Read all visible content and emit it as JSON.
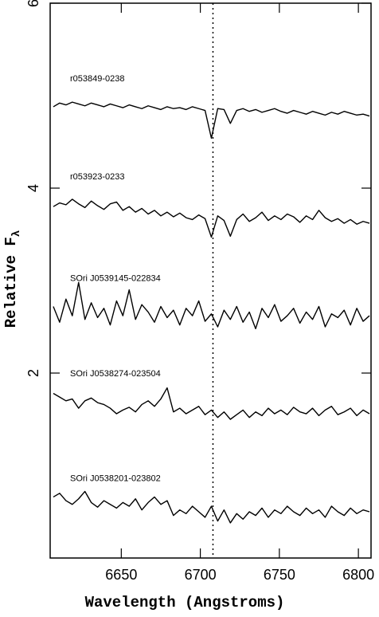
{
  "chart_data": {
    "type": "line",
    "x_label": "Wavelength (Angstroms)",
    "y_label": "Relative F",
    "y_label_subscript": "λ",
    "x": [
      6607,
      6611,
      6615,
      6619,
      6623,
      6627,
      6631,
      6635,
      6639,
      6643,
      6647,
      6651,
      6655,
      6659,
      6663,
      6667,
      6671,
      6675,
      6679,
      6683,
      6687,
      6691,
      6695,
      6699,
      6703,
      6707,
      6711,
      6715,
      6719,
      6723,
      6727,
      6731,
      6735,
      6739,
      6743,
      6747,
      6751,
      6755,
      6759,
      6763,
      6767,
      6771,
      6775,
      6779,
      6783,
      6787,
      6791,
      6795,
      6799,
      6803,
      6807
    ],
    "series": [
      {
        "name": "r053849-0238",
        "color": "#000000",
        "values": [
          4.88,
          4.92,
          4.9,
          4.93,
          4.91,
          4.89,
          4.92,
          4.9,
          4.88,
          4.91,
          4.89,
          4.87,
          4.9,
          4.88,
          4.86,
          4.89,
          4.87,
          4.85,
          4.88,
          4.86,
          4.87,
          4.85,
          4.88,
          4.86,
          4.84,
          4.54,
          4.86,
          4.85,
          4.7,
          4.84,
          4.86,
          4.83,
          4.85,
          4.82,
          4.84,
          4.86,
          4.83,
          4.81,
          4.84,
          4.82,
          4.8,
          4.83,
          4.81,
          4.79,
          4.82,
          4.8,
          4.83,
          4.81,
          4.79,
          4.8,
          4.78
        ]
      },
      {
        "name": "r053923-0233",
        "color": "#000000",
        "values": [
          3.8,
          3.84,
          3.82,
          3.88,
          3.83,
          3.79,
          3.86,
          3.81,
          3.77,
          3.83,
          3.85,
          3.76,
          3.8,
          3.74,
          3.78,
          3.72,
          3.76,
          3.7,
          3.74,
          3.69,
          3.73,
          3.68,
          3.66,
          3.71,
          3.67,
          3.47,
          3.7,
          3.65,
          3.48,
          3.66,
          3.72,
          3.64,
          3.68,
          3.74,
          3.65,
          3.7,
          3.66,
          3.72,
          3.69,
          3.63,
          3.7,
          3.66,
          3.76,
          3.68,
          3.64,
          3.67,
          3.62,
          3.66,
          3.61,
          3.64,
          3.62
        ]
      },
      {
        "name": "SOri J0539145-022834",
        "color": "#000000",
        "values": [
          2.72,
          2.55,
          2.8,
          2.62,
          2.98,
          2.58,
          2.76,
          2.6,
          2.7,
          2.52,
          2.78,
          2.62,
          2.9,
          2.58,
          2.74,
          2.66,
          2.55,
          2.72,
          2.6,
          2.68,
          2.52,
          2.7,
          2.62,
          2.78,
          2.56,
          2.64,
          2.5,
          2.68,
          2.58,
          2.72,
          2.55,
          2.66,
          2.48,
          2.7,
          2.6,
          2.74,
          2.56,
          2.62,
          2.7,
          2.54,
          2.66,
          2.58,
          2.72,
          2.5,
          2.64,
          2.6,
          2.68,
          2.52,
          2.7,
          2.56,
          2.62
        ]
      },
      {
        "name": "SOri J0538274-023504",
        "color": "#000000",
        "values": [
          1.78,
          1.74,
          1.7,
          1.72,
          1.62,
          1.7,
          1.73,
          1.68,
          1.66,
          1.62,
          1.56,
          1.6,
          1.63,
          1.58,
          1.66,
          1.7,
          1.64,
          1.72,
          1.84,
          1.58,
          1.62,
          1.56,
          1.6,
          1.64,
          1.55,
          1.6,
          1.52,
          1.58,
          1.5,
          1.55,
          1.6,
          1.52,
          1.58,
          1.54,
          1.62,
          1.56,
          1.6,
          1.55,
          1.63,
          1.58,
          1.56,
          1.62,
          1.54,
          1.6,
          1.64,
          1.55,
          1.58,
          1.62,
          1.54,
          1.6,
          1.56
        ]
      },
      {
        "name": "SOri J0538201-023802",
        "color": "#000000",
        "values": [
          0.66,
          0.7,
          0.62,
          0.58,
          0.64,
          0.72,
          0.6,
          0.55,
          0.62,
          0.58,
          0.54,
          0.6,
          0.56,
          0.64,
          0.52,
          0.6,
          0.66,
          0.58,
          0.62,
          0.46,
          0.52,
          0.48,
          0.56,
          0.5,
          0.44,
          0.56,
          0.4,
          0.52,
          0.38,
          0.48,
          0.42,
          0.5,
          0.46,
          0.54,
          0.44,
          0.52,
          0.48,
          0.56,
          0.5,
          0.46,
          0.54,
          0.48,
          0.52,
          0.44,
          0.56,
          0.5,
          0.46,
          0.54,
          0.48,
          0.52,
          0.5
        ]
      }
    ],
    "reference_line_x": 6708,
    "xlim": [
      6605,
      6808
    ],
    "xticks": [
      6650,
      6700,
      6750,
      6800
    ],
    "ylim": [
      0,
      6
    ],
    "yticks": [
      2,
      4,
      6
    ]
  }
}
